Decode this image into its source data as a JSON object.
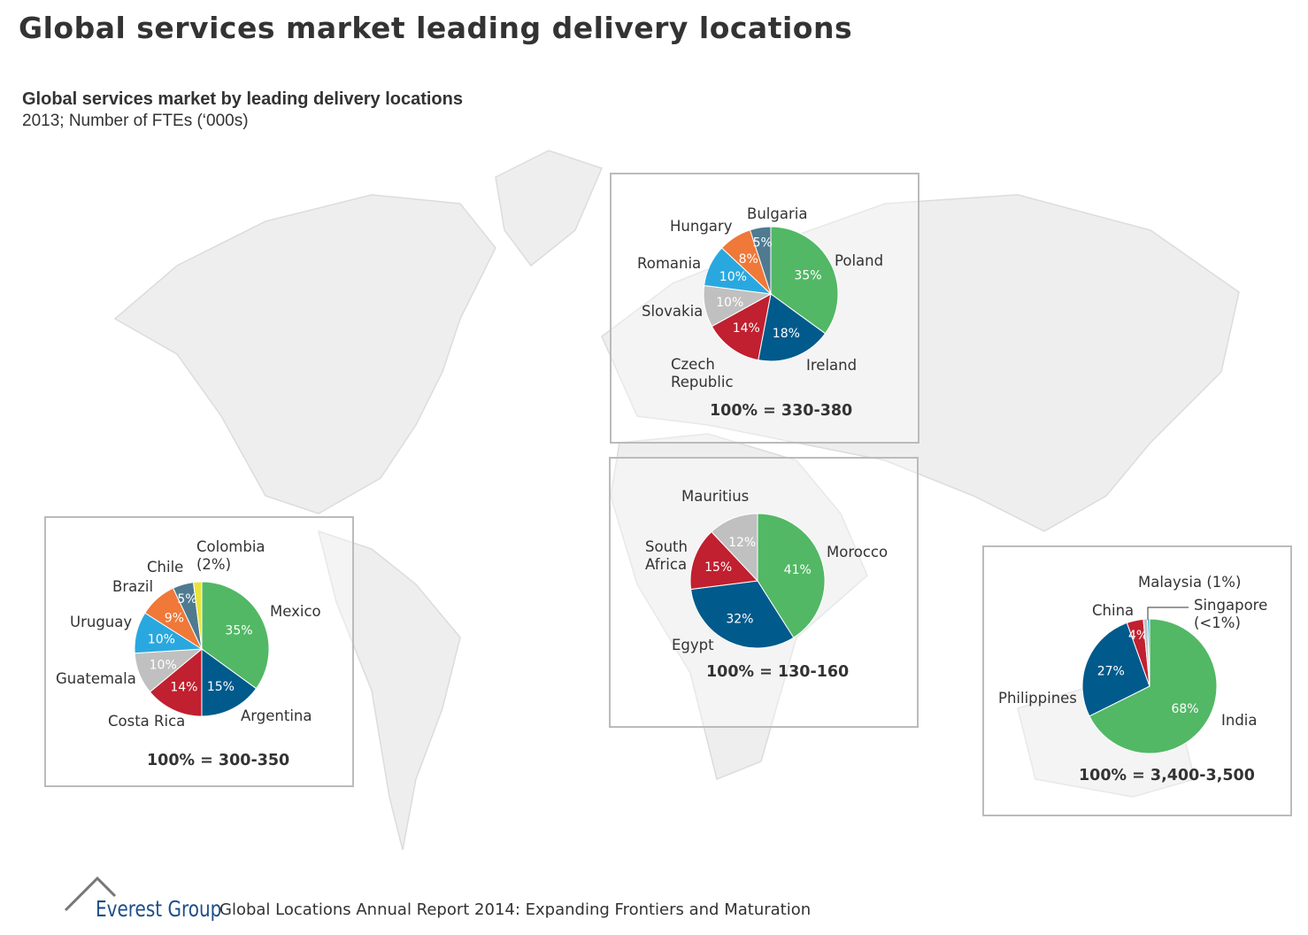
{
  "title": "Global services market leading delivery locations",
  "subtitle": "Global services market by leading delivery locations",
  "subtitle2": "2013; Number of FTEs (‘000s)",
  "footer": {
    "brand": "Everest Group",
    "report": "Global Locations Annual Report 2014: Expanding Frontiers and Maturation"
  },
  "chart_data": [
    {
      "type": "pie",
      "region": "Latin America",
      "total_label": "100% = 300-350",
      "slices": [
        {
          "name": "Mexico",
          "value": 35,
          "label": "35%",
          "color": "#52b865"
        },
        {
          "name": "Argentina",
          "value": 15,
          "label": "15%",
          "color": "#005a8c"
        },
        {
          "name": "Costa Rica",
          "value": 14,
          "label": "14%",
          "color": "#c0202f"
        },
        {
          "name": "Guatemala",
          "value": 10,
          "label": "10%",
          "color": "#c0c0c0"
        },
        {
          "name": "Uruguay",
          "value": 10,
          "label": "10%",
          "color": "#29a8e0"
        },
        {
          "name": "Brazil",
          "value": 9,
          "label": "9%",
          "color": "#f07838"
        },
        {
          "name": "Chile",
          "value": 5,
          "label": "5%",
          "color": "#4f7a90"
        },
        {
          "name": "Colombia\n(2%)",
          "value": 2,
          "label": "",
          "color": "#e8e43a"
        }
      ]
    },
    {
      "type": "pie",
      "region": "Europe",
      "total_label": "100% = 330-380",
      "slices": [
        {
          "name": "Poland",
          "value": 35,
          "label": "35%",
          "color": "#52b865"
        },
        {
          "name": "Ireland",
          "value": 18,
          "label": "18%",
          "color": "#005a8c"
        },
        {
          "name": "Czech\nRepublic",
          "value": 14,
          "label": "14%",
          "color": "#c0202f"
        },
        {
          "name": "Slovakia",
          "value": 10,
          "label": "10%",
          "color": "#c0c0c0"
        },
        {
          "name": "Romania",
          "value": 10,
          "label": "10%",
          "color": "#29a8e0"
        },
        {
          "name": "Hungary",
          "value": 8,
          "label": "8%",
          "color": "#f07838"
        },
        {
          "name": "Bulgaria",
          "value": 5,
          "label": "5%",
          "color": "#4f7a90"
        }
      ]
    },
    {
      "type": "pie",
      "region": "Africa",
      "total_label": "100% = 130-160",
      "slices": [
        {
          "name": "Morocco",
          "value": 41,
          "label": "41%",
          "color": "#52b865"
        },
        {
          "name": "Egypt",
          "value": 32,
          "label": "32%",
          "color": "#005a8c"
        },
        {
          "name": "South\nAfrica",
          "value": 15,
          "label": "15%",
          "color": "#c0202f"
        },
        {
          "name": "Mauritius",
          "value": 12,
          "label": "12%",
          "color": "#c0c0c0"
        }
      ]
    },
    {
      "type": "pie",
      "region": "Asia Pacific",
      "total_label": "100% = 3,400-3,500",
      "slices": [
        {
          "name": "India",
          "value": 68,
          "label": "68%",
          "color": "#52b865"
        },
        {
          "name": "Philippines",
          "value": 27,
          "label": "27%",
          "color": "#005a8c"
        },
        {
          "name": "China",
          "value": 4,
          "label": "4%",
          "color": "#c0202f"
        },
        {
          "name": "Malaysia (1%)",
          "value": 1,
          "label": "",
          "color": "#c0c0c0"
        },
        {
          "name": "Singapore\n(<1%)",
          "value": 0.5,
          "label": "",
          "color": "#29a8e0"
        }
      ]
    }
  ]
}
